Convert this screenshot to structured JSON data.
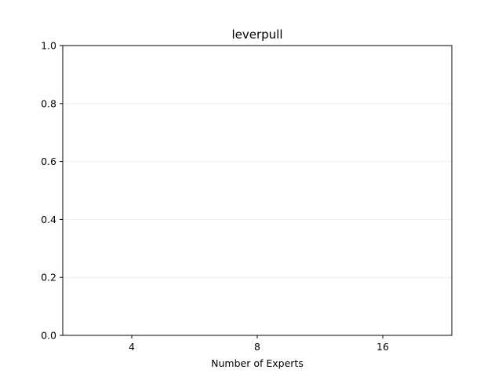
{
  "chart_data": {
    "type": "bar",
    "title": "leverpull",
    "xlabel": "Number of Experts",
    "ylabel": "",
    "categories": [
      "4",
      "8",
      "16"
    ],
    "series": [],
    "ylim": [
      0,
      1
    ],
    "yticks": [
      "0.0",
      "0.2",
      "0.4",
      "0.6",
      "0.8",
      "1.0"
    ],
    "grid": "horizontal",
    "colors": {
      "axis": "#000000",
      "grid": "#ebebeb",
      "background": "#ffffff"
    }
  }
}
